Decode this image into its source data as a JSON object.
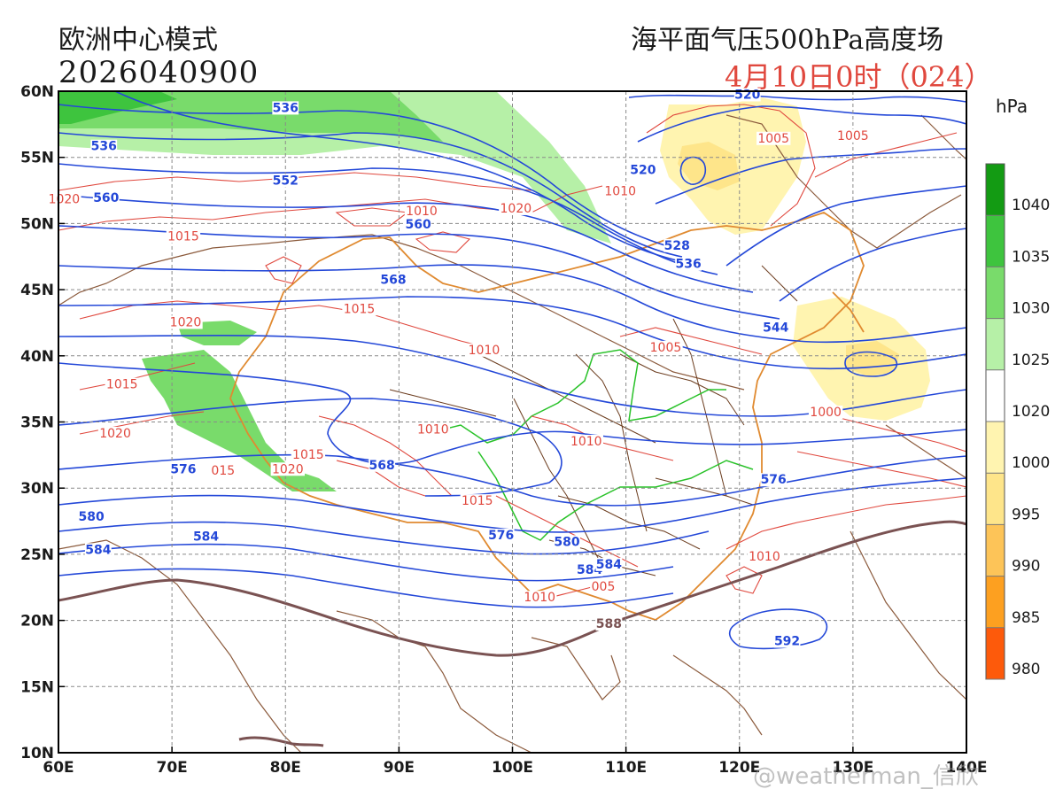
{
  "header": {
    "model_name": "欧洲中心模式",
    "init_time": "2026040900",
    "field_description": "海平面气压500hPa高度场",
    "valid_time": "4月10日0时（024）"
  },
  "axes": {
    "lon_labels": [
      "60E",
      "70E",
      "80E",
      "90E",
      "100E",
      "110E",
      "120E",
      "130E",
      "140E"
    ],
    "lat_labels": [
      "60N",
      "55N",
      "50N",
      "45N",
      "40N",
      "35N",
      "30N",
      "25N",
      "20N",
      "15N",
      "10N"
    ],
    "lon_range": [
      60,
      140
    ],
    "lat_range": [
      10,
      60
    ],
    "grid": true
  },
  "height_contours": {
    "color": "#2448d8",
    "interval": 4,
    "levels": [
      520,
      524,
      528,
      532,
      536,
      540,
      544,
      548,
      552,
      556,
      560,
      564,
      568,
      572,
      576,
      580,
      584,
      588,
      592
    ],
    "labels": [
      {
        "text": "536",
        "lon": 64.0,
        "lat": 55.6
      },
      {
        "text": "536",
        "lon": 80.0,
        "lat": 58.5
      },
      {
        "text": "552",
        "lon": 80.0,
        "lat": 53.0
      },
      {
        "text": "560",
        "lon": 64.2,
        "lat": 51.7
      },
      {
        "text": "560",
        "lon": 91.7,
        "lat": 49.7
      },
      {
        "text": "568",
        "lon": 89.5,
        "lat": 45.5
      },
      {
        "text": "568",
        "lon": 88.5,
        "lat": 31.5
      },
      {
        "text": "576",
        "lon": 71.0,
        "lat": 31.2
      },
      {
        "text": "576",
        "lon": 99.0,
        "lat": 26.2
      },
      {
        "text": "576",
        "lon": 123.0,
        "lat": 30.4
      },
      {
        "text": "580",
        "lon": 62.9,
        "lat": 27.6
      },
      {
        "text": "580",
        "lon": 104.8,
        "lat": 25.7
      },
      {
        "text": "584",
        "lon": 63.5,
        "lat": 25.1
      },
      {
        "text": "584",
        "lon": 73.0,
        "lat": 26.1
      },
      {
        "text": "584",
        "lon": 106.8,
        "lat": 23.6
      },
      {
        "text": "584",
        "lon": 108.5,
        "lat": 24.0
      },
      {
        "text": "588",
        "lon": 108.5,
        "lat": 19.5
      },
      {
        "text": "592",
        "lon": 124.2,
        "lat": 18.2
      },
      {
        "text": "520",
        "lon": 111.5,
        "lat": 53.8
      },
      {
        "text": "520",
        "lon": 120.7,
        "lat": 59.5
      },
      {
        "text": "528",
        "lon": 114.5,
        "lat": 48.1
      },
      {
        "text": "536",
        "lon": 115.5,
        "lat": 46.7
      },
      {
        "text": "544",
        "lon": 123.2,
        "lat": 41.9
      }
    ]
  },
  "pressure_contours": {
    "color": "#e0483e",
    "labels": [
      {
        "text": "1020",
        "lon": 60.5,
        "lat": 51.6
      },
      {
        "text": "1015",
        "lon": 71.0,
        "lat": 48.8
      },
      {
        "text": "1010",
        "lon": 92.0,
        "lat": 50.7
      },
      {
        "text": "1020",
        "lon": 100.3,
        "lat": 50.9
      },
      {
        "text": "1010",
        "lon": 109.5,
        "lat": 52.2
      },
      {
        "text": "1005",
        "lon": 123.0,
        "lat": 56.2
      },
      {
        "text": "1005",
        "lon": 130.0,
        "lat": 56.4
      },
      {
        "text": "1020",
        "lon": 71.2,
        "lat": 42.3
      },
      {
        "text": "1015",
        "lon": 86.5,
        "lat": 43.3
      },
      {
        "text": "1010",
        "lon": 97.5,
        "lat": 40.2
      },
      {
        "text": "1015",
        "lon": 65.6,
        "lat": 37.6
      },
      {
        "text": "1020",
        "lon": 65.0,
        "lat": 33.9
      },
      {
        "text": "1015",
        "lon": 82.0,
        "lat": 32.3
      },
      {
        "text": "1020",
        "lon": 80.2,
        "lat": 31.2
      },
      {
        "text": "015",
        "lon": 74.5,
        "lat": 31.1
      },
      {
        "text": "1010",
        "lon": 93.0,
        "lat": 34.2
      },
      {
        "text": "1015",
        "lon": 96.9,
        "lat": 28.8
      },
      {
        "text": "1010",
        "lon": 106.5,
        "lat": 33.3
      },
      {
        "text": "1005",
        "lon": 113.5,
        "lat": 40.4
      },
      {
        "text": "1000",
        "lon": 127.6,
        "lat": 35.5
      },
      {
        "text": "005",
        "lon": 108.0,
        "lat": 22.3
      },
      {
        "text": "1010",
        "lon": 102.4,
        "lat": 21.5
      },
      {
        "text": "1010",
        "lon": 122.2,
        "lat": 24.6
      }
    ]
  },
  "boundary_colors": {
    "coastline": "#8b5a3c",
    "china_border": "#e08a30",
    "province": "#6b3c1e",
    "rivers": "#29c229"
  },
  "colorbar": {
    "unit": "hPa",
    "ticks": [
      "1040",
      "1035",
      "1030",
      "1025",
      "1020",
      "1000",
      "995",
      "990",
      "985",
      "980"
    ],
    "colors": [
      "#139b13",
      "#3ec43e",
      "#79db6b",
      "#b6f0a7",
      "#ffffff",
      "#fff4b0",
      "#fee58a",
      "#fdc458",
      "#fda020",
      "#fd5a0b"
    ]
  },
  "watermark": "@weatherman_信欣"
}
